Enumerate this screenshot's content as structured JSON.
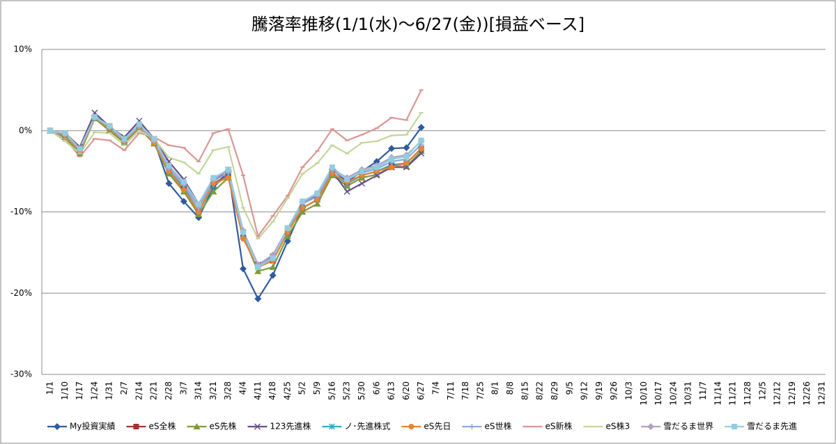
{
  "chart_data": {
    "type": "line",
    "title": "騰落率推移(1/1(水)～6/27(金))[損益ベース]",
    "categories": [
      "1/1",
      "1/10",
      "1/17",
      "1/24",
      "1/31",
      "2/7",
      "2/14",
      "2/21",
      "2/28",
      "3/7",
      "3/14",
      "3/21",
      "3/28",
      "4/4",
      "4/11",
      "4/18",
      "4/25",
      "5/2",
      "5/9",
      "5/16",
      "5/23",
      "5/30",
      "6/6",
      "6/13",
      "6/20",
      "6/27",
      "7/4",
      "7/11",
      "7/18",
      "7/25",
      "8/1",
      "8/8",
      "8/15",
      "8/22",
      "8/29",
      "9/5",
      "9/12",
      "9/19",
      "9/26",
      "10/3",
      "10/10",
      "10/17",
      "10/24",
      "10/31",
      "11/7",
      "11/14",
      "11/21",
      "11/28",
      "12/5",
      "12/12",
      "12/19",
      "12/26",
      "12/31"
    ],
    "ylim": [
      -30,
      10
    ],
    "yticks": [
      {
        "value": -30,
        "label": "-30%"
      },
      {
        "value": -20,
        "label": "-20%"
      },
      {
        "value": -10,
        "label": "-10%"
      },
      {
        "value": 0,
        "label": "0%"
      },
      {
        "value": 10,
        "label": "10%"
      }
    ],
    "grid": true,
    "legend": "bottom",
    "series": [
      {
        "name": "My投資実績",
        "color": "#2f5b9e",
        "marker": "diamond",
        "values": [
          0,
          -0.5,
          -2.2,
          1.8,
          0.5,
          -1,
          0.8,
          -1.2,
          -6.5,
          -8.7,
          -10.7,
          -7,
          -5,
          -17,
          -20.7,
          -17.8,
          -13.6,
          -9.5,
          -8.5,
          -4.8,
          -6.3,
          -5,
          -3.8,
          -2.2,
          -2.1,
          0.4,
          null,
          null,
          null,
          null,
          null,
          null,
          null,
          null,
          null,
          null,
          null,
          null,
          null,
          null,
          null,
          null,
          null,
          null,
          null,
          null,
          null,
          null,
          null,
          null,
          null,
          null,
          null
        ]
      },
      {
        "name": "eS全株",
        "color": "#a0342f",
        "marker": "square",
        "values": [
          0,
          -0.5,
          -2.5,
          1.6,
          0.3,
          -1.3,
          0.5,
          -1.5,
          -5,
          -7,
          -10,
          -6.5,
          -5.5,
          -13,
          -16.8,
          -16,
          -12.5,
          -9.5,
          -8.5,
          -5.2,
          -6.5,
          -5.5,
          -5,
          -4.3,
          -4,
          -2.2,
          null,
          null,
          null,
          null,
          null,
          null,
          null,
          null,
          null,
          null,
          null,
          null,
          null,
          null,
          null,
          null,
          null,
          null,
          null,
          null,
          null,
          null,
          null,
          null,
          null,
          null,
          null
        ]
      },
      {
        "name": "eS先株",
        "color": "#7f9a3a",
        "marker": "triangle",
        "values": [
          0,
          -0.8,
          -2.8,
          1.5,
          0,
          -1.5,
          0.3,
          -1.6,
          -5.3,
          -7.5,
          -10.3,
          -7.5,
          -5.8,
          -13,
          -17.3,
          -16.8,
          -13,
          -10,
          -9,
          -5.5,
          -6.8,
          -5.8,
          -5.4,
          -4.5,
          -4.4,
          -2.5,
          null,
          null,
          null,
          null,
          null,
          null,
          null,
          null,
          null,
          null,
          null,
          null,
          null,
          null,
          null,
          null,
          null,
          null,
          null,
          null,
          null,
          null,
          null,
          null,
          null,
          null,
          null
        ]
      },
      {
        "name": "123先進株",
        "color": "#6a4c8c",
        "marker": "x",
        "values": [
          0,
          -0.3,
          -2,
          2.2,
          0.5,
          -0.8,
          1.2,
          -1,
          -3.8,
          -6,
          -9,
          -6.2,
          -4.8,
          -12.5,
          -16.5,
          -15.5,
          -12,
          -9,
          -8,
          -5,
          -7.5,
          -6.5,
          -5.5,
          -4.5,
          -4.5,
          -2.8,
          null,
          null,
          null,
          null,
          null,
          null,
          null,
          null,
          null,
          null,
          null,
          null,
          null,
          null,
          null,
          null,
          null,
          null,
          null,
          null,
          null,
          null,
          null,
          null,
          null,
          null,
          null
        ]
      },
      {
        "name": "ノ･先進株式",
        "color": "#3aa6c3",
        "marker": "asterisk",
        "values": [
          0,
          -0.5,
          -2.5,
          1.6,
          0.3,
          -1.3,
          0.5,
          -1.4,
          -5,
          -7,
          -10,
          -6.8,
          -5.5,
          -12.8,
          -16.8,
          -15.8,
          -12.5,
          -9.5,
          -8.5,
          -5.3,
          -6.5,
          -5.5,
          -5,
          -4.2,
          -4,
          -2.2,
          null,
          null,
          null,
          null,
          null,
          null,
          null,
          null,
          null,
          null,
          null,
          null,
          null,
          null,
          null,
          null,
          null,
          null,
          null,
          null,
          null,
          null,
          null,
          null,
          null,
          null,
          null
        ]
      },
      {
        "name": "eS先日",
        "color": "#e8832e",
        "marker": "circle",
        "values": [
          0,
          -0.5,
          -2.5,
          1.6,
          0.3,
          -1.3,
          0.5,
          -1.5,
          -5,
          -7.3,
          -10,
          -6.5,
          -5.8,
          -13.3,
          -16.8,
          -16,
          -12.5,
          -9.5,
          -8.5,
          -5.3,
          -6.3,
          -5.5,
          -5,
          -4.5,
          -4,
          -2.2,
          null,
          null,
          null,
          null,
          null,
          null,
          null,
          null,
          null,
          null,
          null,
          null,
          null,
          null,
          null,
          null,
          null,
          null,
          null,
          null,
          null,
          null,
          null,
          null,
          null,
          null,
          null
        ]
      },
      {
        "name": "eS世株",
        "color": "#8da9d8",
        "marker": "plus",
        "values": [
          0,
          -0.4,
          -2.3,
          1.7,
          0.4,
          -1.2,
          0.6,
          -1.3,
          -4.7,
          -6.7,
          -9.5,
          -6.2,
          -5.2,
          -12.7,
          -16.6,
          -15.6,
          -12.2,
          -9,
          -8.1,
          -4.9,
          -6,
          -5.2,
          -4.7,
          -3.8,
          -3.5,
          -1.7,
          null,
          null,
          null,
          null,
          null,
          null,
          null,
          null,
          null,
          null,
          null,
          null,
          null,
          null,
          null,
          null,
          null,
          null,
          null,
          null,
          null,
          null,
          null,
          null,
          null,
          null,
          null
        ]
      },
      {
        "name": "eS新株",
        "color": "#d99694",
        "marker": "dash",
        "values": [
          0,
          -1,
          -3.2,
          -1,
          -1.2,
          -2.4,
          -0.3,
          -0.8,
          -1.8,
          -2.1,
          -3.8,
          -0.3,
          0.2,
          -5.5,
          -13,
          -10.5,
          -8,
          -4.5,
          -2.5,
          0.2,
          -1.2,
          -0.5,
          0.3,
          1.6,
          1.3,
          5,
          null,
          null,
          null,
          null,
          null,
          null,
          null,
          null,
          null,
          null,
          null,
          null,
          null,
          null,
          null,
          null,
          null,
          null,
          null,
          null,
          null,
          null,
          null,
          null,
          null,
          null,
          null
        ]
      },
      {
        "name": "eS株3",
        "color": "#c3d69b",
        "marker": "dash",
        "values": [
          0,
          -1.3,
          -2.8,
          -0.2,
          -0.3,
          -1.8,
          0,
          -1,
          -3.3,
          -3.9,
          -5.3,
          -2.4,
          -2,
          -9.5,
          -13.3,
          -11.2,
          -8.3,
          -5.3,
          -4,
          -1.8,
          -2.8,
          -1.5,
          -1.3,
          -0.6,
          -0.5,
          2.2,
          null,
          null,
          null,
          null,
          null,
          null,
          null,
          null,
          null,
          null,
          null,
          null,
          null,
          null,
          null,
          null,
          null,
          null,
          null,
          null,
          null,
          null,
          null,
          null,
          null,
          null,
          null
        ]
      },
      {
        "name": "雪だるま世界",
        "color": "#b2a2c7",
        "marker": "diamond",
        "values": [
          0,
          -0.4,
          -2.3,
          1.6,
          0.5,
          -1.2,
          0.6,
          -1.2,
          -4.5,
          -6.5,
          -9.3,
          -6,
          -4.8,
          -12.3,
          -16.5,
          -15.3,
          -12,
          -8.8,
          -7.8,
          -4.7,
          -5.8,
          -4.8,
          -4.3,
          -3.3,
          -3,
          -1.3,
          null,
          null,
          null,
          null,
          null,
          null,
          null,
          null,
          null,
          null,
          null,
          null,
          null,
          null,
          null,
          null,
          null,
          null,
          null,
          null,
          null,
          null,
          null,
          null,
          null,
          null,
          null
        ]
      },
      {
        "name": "雪だるま先進",
        "color": "#93cddd",
        "marker": "square",
        "values": [
          0,
          -0.3,
          -2.2,
          1.7,
          0.6,
          -1,
          0.8,
          -1,
          -4.3,
          -6.3,
          -9,
          -5.8,
          -4.8,
          -12.5,
          -16.8,
          -15.7,
          -12,
          -8.7,
          -7.7,
          -4.5,
          -6,
          -5,
          -4.5,
          -3.5,
          -3.2,
          -1.2,
          null,
          null,
          null,
          null,
          null,
          null,
          null,
          null,
          null,
          null,
          null,
          null,
          null,
          null,
          null,
          null,
          null,
          null,
          null,
          null,
          null,
          null,
          null,
          null,
          null,
          null,
          null
        ]
      }
    ]
  }
}
